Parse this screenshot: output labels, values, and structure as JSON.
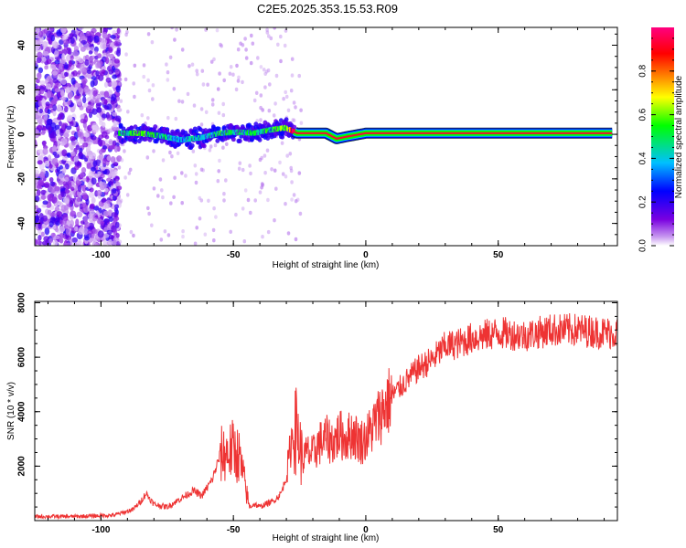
{
  "chart_data": [
    {
      "type": "heatmap",
      "title": "C2E5.2025.353.15.53.R09",
      "xlabel": "Height of straight line (km)",
      "ylabel": "Frequency (Hz)",
      "xlim": [
        -125,
        95
      ],
      "ylim": [
        -50,
        48
      ],
      "xticks": [
        -100,
        -50,
        0,
        50
      ],
      "xtick_labels": [
        "-100",
        "-50",
        "0",
        "50"
      ],
      "yticks": [
        -40,
        -20,
        0,
        20,
        40
      ],
      "ytick_labels": [
        "-40",
        "-20",
        "0",
        "20",
        "40"
      ],
      "colorbar": {
        "label": "Normalized spectral amplitude",
        "range": [
          0,
          1
        ],
        "ticks": [
          0.0,
          0.2,
          0.4,
          0.6,
          0.8
        ],
        "tick_labels": [
          "0.0",
          "0.2",
          "0.4",
          "0.6",
          "0.8"
        ],
        "colors": [
          "#ffffff",
          "#c89af0",
          "#7a00e0",
          "#0000ff",
          "#00c0ff",
          "#00ff00",
          "#ffff00",
          "#ff7f00",
          "#ff0000",
          "#ff0080"
        ]
      },
      "noise_region_x": [
        -125,
        -94
      ],
      "signal_trace": [
        {
          "x": -93,
          "freq": 0.5,
          "amp": 0.45
        },
        {
          "x": -85,
          "freq": 0.5,
          "amp": 0.55
        },
        {
          "x": -78,
          "freq": -0.5,
          "amp": 0.45
        },
        {
          "x": -70,
          "freq": -2.5,
          "amp": 0.4
        },
        {
          "x": -62,
          "freq": -1.5,
          "amp": 0.45
        },
        {
          "x": -55,
          "freq": 0.5,
          "amp": 0.5
        },
        {
          "x": -48,
          "freq": 1,
          "amp": 0.45
        },
        {
          "x": -42,
          "freq": 0.5,
          "amp": 0.5
        },
        {
          "x": -36,
          "freq": 2,
          "amp": 0.5
        },
        {
          "x": -30,
          "freq": 3,
          "amp": 0.55
        },
        {
          "x": -26,
          "freq": 0.5,
          "amp": 0.95
        },
        {
          "x": -15,
          "freq": 0.5,
          "amp": 0.95
        },
        {
          "x": -11,
          "freq": -2,
          "amp": 0.9
        },
        {
          "x": -7,
          "freq": -1,
          "amp": 0.9
        },
        {
          "x": 0,
          "freq": 0.5,
          "amp": 0.95
        },
        {
          "x": 30,
          "freq": 0.5,
          "amp": 0.95
        },
        {
          "x": 60,
          "freq": 0.5,
          "amp": 0.95
        },
        {
          "x": 93,
          "freq": 0.5,
          "amp": 0.95
        }
      ]
    },
    {
      "type": "line",
      "xlabel": "Height of straight line (km)",
      "ylabel": "SNR (10 * v/v)",
      "xlim": [
        -125,
        95
      ],
      "ylim": [
        0,
        8050
      ],
      "xticks": [
        -100,
        -50,
        0,
        50
      ],
      "xtick_labels": [
        "-100",
        "-50",
        "0",
        "50"
      ],
      "yticks": [
        2000,
        4000,
        6000,
        8000
      ],
      "ytick_labels": [
        "2000",
        "4000",
        "6000",
        "8000"
      ],
      "series": [
        {
          "name": "SNR",
          "color": "#ee3333",
          "x": [
            -125,
            -110,
            -95,
            -88,
            -85,
            -83,
            -80,
            -75,
            -70,
            -65,
            -62,
            -58,
            -55,
            -52,
            -50,
            -48,
            -46,
            -44,
            -42,
            -40,
            -38,
            -35,
            -32,
            -30,
            -28,
            -26,
            -24,
            -22,
            -20,
            -18,
            -15,
            -12,
            -10,
            -8,
            -5,
            -2,
            0,
            3,
            6,
            10,
            15,
            20,
            25,
            30,
            35,
            40,
            50,
            60,
            70,
            80,
            90,
            95
          ],
          "y": [
            150,
            150,
            200,
            400,
            700,
            1000,
            600,
            500,
            800,
            1100,
            900,
            1500,
            2400,
            2500,
            2600,
            2400,
            1500,
            500,
            600,
            500,
            600,
            700,
            1000,
            1600,
            3000,
            3400,
            2200,
            2500,
            2400,
            2800,
            3000,
            2900,
            3200,
            3000,
            3200,
            2900,
            3000,
            3500,
            4000,
            4600,
            5100,
            5600,
            5900,
            6400,
            6500,
            6700,
            6900,
            6800,
            7000,
            7000,
            6900,
            6900
          ]
        }
      ]
    }
  ]
}
